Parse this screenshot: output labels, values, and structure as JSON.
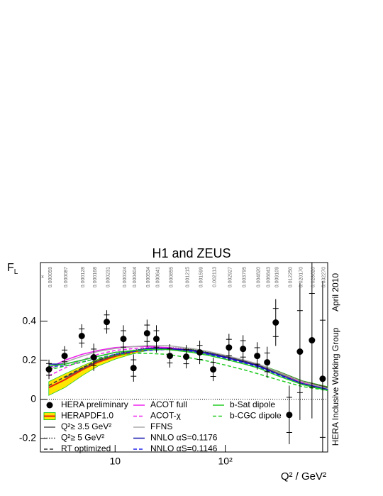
{
  "chart_data": {
    "type": "scatter",
    "title": "H1 and ZEUS",
    "y_label": {
      "main": "F",
      "sub": "L"
    },
    "x_label": "Q² / GeV²",
    "side_texts": [
      "April 2010",
      "HERA Inclusive Working Group"
    ],
    "top_x_header": "x",
    "top_x_labels": [
      "0.000059",
      "0.000087",
      "0.000128",
      "0.000168",
      "0.000231",
      "0.000324",
      "0.000404",
      "0.000534",
      "0.000641",
      "0.000855",
      "0.001215",
      "0.001599",
      "0.002113",
      "0.002927",
      "0.003795",
      "0.004820",
      "0.006843",
      "0.009109",
      "0.012250",
      "0.020170",
      "0.028620",
      "0.032270"
    ],
    "log_x": true,
    "zero_line": true,
    "xlim": [
      2.1,
      850
    ],
    "ylim": [
      -0.27,
      0.7
    ],
    "xticks": [
      {
        "value": 10,
        "label": "10"
      },
      {
        "value": 100,
        "label": "10²"
      }
    ],
    "yticks": [
      -0.2,
      0,
      0.2,
      0.4
    ],
    "data": {
      "name": "HERA preliminary",
      "color": "#000000",
      "x": [
        2.51,
        3.48,
        4.98,
        6.4,
        8.4,
        11.9,
        14.7,
        19.5,
        23.7,
        31.4,
        44.2,
        58.6,
        77.7,
        108,
        145,
        195,
        240,
        287,
        381,
        476,
        612,
        765
      ],
      "values": [
        0.153,
        0.222,
        0.324,
        0.215,
        0.396,
        0.309,
        0.16,
        0.338,
        0.309,
        0.222,
        0.218,
        0.24,
        0.153,
        0.265,
        0.258,
        0.222,
        0.189,
        0.393,
        -0.08,
        0.244,
        0.302,
        0.105
      ],
      "errors": [
        0.05,
        0.05,
        0.06,
        0.07,
        0.06,
        0.07,
        0.07,
        0.07,
        0.07,
        0.06,
        0.06,
        0.06,
        0.06,
        0.07,
        0.07,
        0.07,
        0.08,
        0.12,
        0.15,
        0.35,
        0.4,
        0.5
      ]
    },
    "curve_x": [
      2.5,
      3.5,
      5,
      7,
      10,
      15,
      20,
      30,
      50,
      70,
      100,
      150,
      200,
      300,
      500,
      850
    ],
    "band": {
      "name": "HERAPDF1.0",
      "color": "#ffe600",
      "central_color": "#e8200a",
      "low_color": "#22cc22",
      "central": [
        0.06,
        0.1,
        0.15,
        0.19,
        0.22,
        0.245,
        0.255,
        0.26,
        0.25,
        0.235,
        0.22,
        0.195,
        0.175,
        0.14,
        0.09,
        0.06
      ],
      "upper": [
        0.09,
        0.13,
        0.17,
        0.205,
        0.23,
        0.25,
        0.26,
        0.265,
        0.255,
        0.24,
        0.225,
        0.2,
        0.18,
        0.145,
        0.095,
        0.065
      ],
      "lower": [
        0.02,
        0.06,
        0.12,
        0.17,
        0.205,
        0.235,
        0.25,
        0.255,
        0.245,
        0.23,
        0.215,
        0.19,
        0.17,
        0.135,
        0.085,
        0.055
      ]
    },
    "series": [
      {
        "name": "Q²≥ 3.5 GeV²",
        "color": "#555555",
        "style": "solid",
        "values": [
          null,
          0.11,
          0.155,
          0.195,
          0.225,
          0.248,
          0.258,
          0.262,
          0.252,
          0.237,
          0.22,
          0.195,
          0.175,
          0.14,
          0.09,
          0.06
        ]
      },
      {
        "name": "Q²≥ 5 GeV²",
        "color": "#333333",
        "style": "dotted",
        "values": [
          null,
          null,
          0.16,
          0.2,
          0.23,
          0.252,
          0.262,
          0.266,
          0.255,
          0.24,
          0.222,
          0.197,
          0.177,
          0.142,
          0.092,
          0.06
        ]
      },
      {
        "name": "RT optimized",
        "color": "#333333",
        "style": "dashed",
        "values": [
          0.07,
          0.115,
          0.16,
          0.2,
          0.228,
          0.25,
          0.26,
          0.264,
          0.253,
          0.238,
          0.22,
          0.195,
          0.175,
          0.14,
          0.09,
          0.06
        ]
      },
      {
        "name": "ACOT full",
        "color": "#ee22ee",
        "style": "solid",
        "values": [
          0.16,
          0.2,
          0.23,
          0.25,
          0.265,
          0.27,
          0.27,
          0.265,
          0.25,
          0.235,
          0.215,
          0.19,
          0.17,
          0.13,
          0.08,
          0.05
        ]
      },
      {
        "name": "ACOT-χ",
        "color": "#ee22ee",
        "style": "dashed",
        "values": [
          0.12,
          0.16,
          0.2,
          0.23,
          0.25,
          0.26,
          0.265,
          0.265,
          0.25,
          0.235,
          0.215,
          0.19,
          0.17,
          0.13,
          0.085,
          0.05
        ]
      },
      {
        "name": "FFNS",
        "color": "#aaaaaa",
        "style": "solid",
        "values": [
          0.15,
          0.19,
          0.22,
          0.245,
          0.26,
          0.27,
          0.275,
          0.275,
          0.26,
          0.245,
          0.225,
          0.2,
          0.18,
          0.14,
          0.09,
          0.055
        ]
      },
      {
        "name": "NNLO αS=0.1176",
        "color": "#1111aa",
        "style": "solid",
        "values": [
          0.18,
          0.18,
          0.2,
          0.22,
          0.24,
          0.25,
          0.26,
          0.26,
          0.25,
          0.235,
          0.215,
          0.19,
          0.17,
          0.13,
          0.08,
          0.05
        ]
      },
      {
        "name": "NNLO αS=0.1146",
        "color": "#2222ee",
        "style": "dashed",
        "values": [
          0.17,
          0.17,
          0.19,
          0.21,
          0.23,
          0.245,
          0.25,
          0.255,
          0.245,
          0.23,
          0.21,
          0.185,
          0.165,
          0.125,
          0.078,
          0.048
        ]
      },
      {
        "name": "b-Sat dipole",
        "color": "#22cc22",
        "style": "solid",
        "values": [
          0.17,
          0.18,
          0.2,
          0.22,
          0.24,
          0.25,
          0.255,
          0.255,
          0.24,
          0.225,
          0.205,
          0.18,
          0.16,
          0.12,
          0.075,
          0.045
        ]
      },
      {
        "name": "b-CGC dipole",
        "color": "#22cc22",
        "style": "dashed",
        "values": [
          0.15,
          0.17,
          0.19,
          0.21,
          0.225,
          0.235,
          0.235,
          0.23,
          0.21,
          0.195,
          0.175,
          0.15,
          0.13,
          0.1,
          0.065,
          0.045
        ]
      }
    ]
  }
}
